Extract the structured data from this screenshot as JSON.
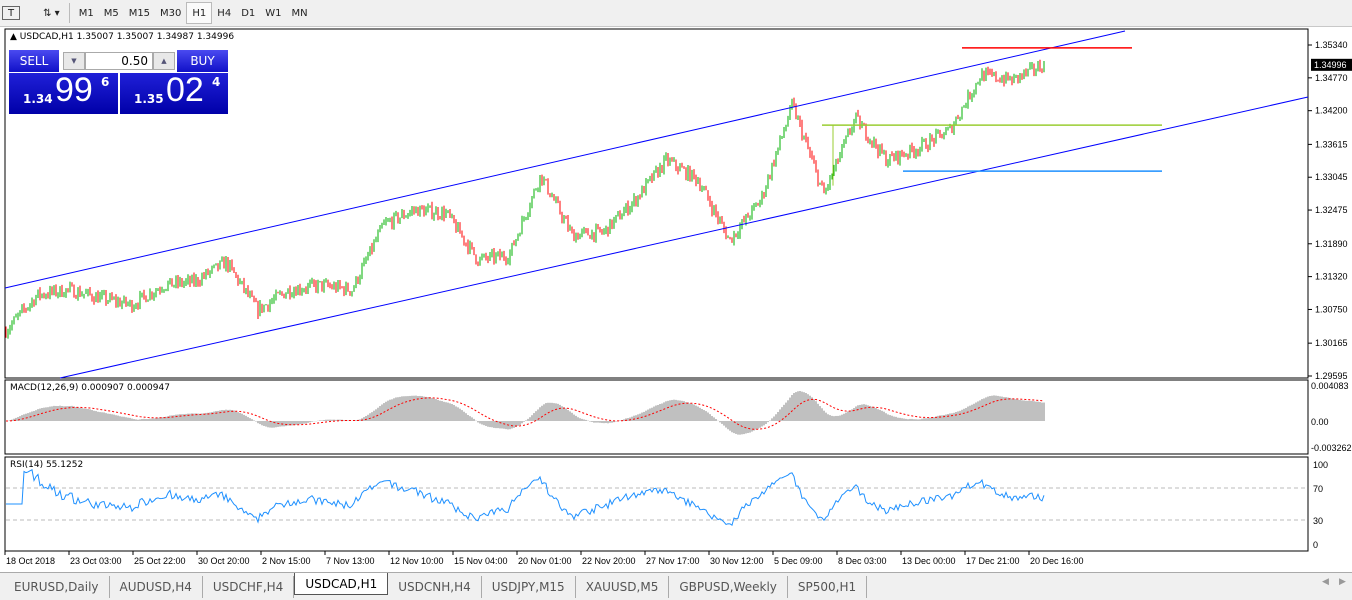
{
  "toolbar": {
    "icons": [
      "text-tool-icon",
      "objects-icon"
    ],
    "timeframes": [
      "M1",
      "M5",
      "M15",
      "M30",
      "H1",
      "H4",
      "D1",
      "W1",
      "MN"
    ],
    "active": "H1"
  },
  "chart": {
    "symbol_info": "USDCAD,H1  1.35007 1.35007 1.34987 1.34996",
    "current_price": "1.34996",
    "price_axis": [
      "1.35340",
      "1.34770",
      "1.34200",
      "1.33615",
      "1.33045",
      "1.32475",
      "1.31890",
      "1.31320",
      "1.30750",
      "1.30165",
      "1.29595"
    ],
    "time_axis": [
      "18 Oct 2018",
      "23 Oct 03:00",
      "25 Oct 22:00",
      "30 Oct 20:00",
      "2 Nov 15:00",
      "7 Nov 13:00",
      "12 Nov 10:00",
      "15 Nov 04:00",
      "20 Nov 01:00",
      "22 Nov 20:00",
      "27 Nov 17:00",
      "30 Nov 12:00",
      "5 Dec 09:00",
      "8 Dec 03:00",
      "13 Dec 00:00",
      "17 Dec 21:00",
      "20 Dec 16:00"
    ],
    "levels": [
      {
        "price": 1.3529,
        "color": "#ff0000"
      },
      {
        "price": 1.3395,
        "color": "#9acd32"
      },
      {
        "price": 1.3315,
        "color": "#1e90ff"
      }
    ],
    "colors": {
      "bull": "#00b000",
      "bear": "#ff0000",
      "channel": "#0000ff"
    }
  },
  "trade_panel": {
    "sell_label": "SELL",
    "buy_label": "BUY",
    "lot": "0.50",
    "bid_prefix": "1.34",
    "bid_big": "99",
    "bid_sup": "6",
    "ask_prefix": "1.35",
    "ask_big": "02",
    "ask_sup": "4"
  },
  "macd": {
    "label": "MACD(12,26,9) 0.000907 0.000947",
    "axis": [
      "0.004083",
      "0.00",
      "-0.003262"
    ]
  },
  "rsi": {
    "label": "RSI(14) 55.1252",
    "axis": [
      "100",
      "70",
      "30",
      "0"
    ]
  },
  "chart_data": {
    "type": "candlestick",
    "closes": [
      1.3039,
      1.31,
      1.3109,
      1.3095,
      1.3083,
      1.3117,
      1.3123,
      1.3157,
      1.3074,
      1.3109,
      1.3117,
      1.3109,
      1.3222,
      1.3248,
      1.3242,
      1.3161,
      1.3169,
      1.3308,
      1.3204,
      1.3209,
      1.3265,
      1.3334,
      1.33,
      1.3195,
      1.3265,
      1.343,
      1.3274,
      1.3407,
      1.3334,
      1.3355,
      1.3386,
      1.3482,
      1.3473,
      1.34996
    ],
    "ylim": [
      1.29595,
      1.3534
    ]
  },
  "tabs": [
    "EURUSD,Daily",
    "AUDUSD,H4",
    "USDCHF,H4",
    "USDCAD,H1",
    "USDCNH,H4",
    "USDJPY,M15",
    "XAUUSD,M5",
    "GBPUSD,Weekly",
    "SP500,H1"
  ],
  "active_tab": "USDCAD,H1"
}
